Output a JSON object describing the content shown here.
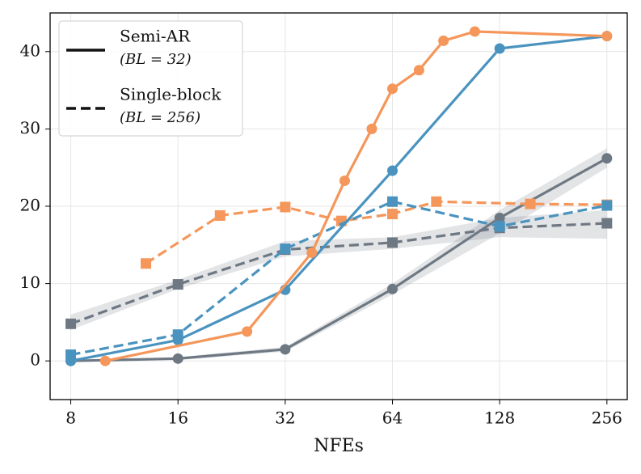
{
  "chart_data": {
    "type": "line",
    "x_label": "NFEs",
    "log_x": true,
    "grid": true,
    "xlim": [
      7,
      292
    ],
    "ylim": [
      -5,
      45
    ],
    "xticks": [
      8,
      16,
      32,
      64,
      128,
      256
    ],
    "yticks": [
      0,
      10,
      20,
      30,
      40
    ],
    "legend_position": "upper left",
    "legend": [
      {
        "label": "Semi-AR",
        "sublabel": "(BL = 32)",
        "style": "solid"
      },
      {
        "label": "Single-block",
        "sublabel": "(BL = 256)",
        "style": "dashed"
      }
    ],
    "series": [
      {
        "color": "#6e7883",
        "style": "dashed",
        "marker": "square",
        "x": [
          8,
          16,
          32,
          64,
          128,
          256
        ],
        "values": [
          4.8,
          9.9,
          14.4,
          15.3,
          17.2,
          17.8
        ],
        "lower": [
          4.0,
          9.3,
          13.5,
          14.5,
          16.0,
          15.8
        ],
        "upper": [
          6.0,
          10.5,
          15.5,
          16.0,
          18.5,
          19.5
        ]
      },
      {
        "color": "#6e7883",
        "style": "solid",
        "marker": "circle",
        "x": [
          8,
          16,
          32,
          64,
          128,
          256
        ],
        "values": [
          0,
          0.3,
          1.5,
          9.3,
          18.5,
          26.2
        ],
        "lower": [
          0,
          0.1,
          1.2,
          8.6,
          16.5,
          25.0
        ],
        "upper": [
          0,
          0.5,
          1.8,
          10.0,
          19.5,
          27.5
        ]
      },
      {
        "color": "#f5965a",
        "style": "dashed",
        "marker": "square",
        "x": [
          13,
          21,
          32,
          46,
          64,
          85,
          156,
          256
        ],
        "values": [
          12.6,
          18.8,
          19.9,
          18.1,
          19.0,
          20.6,
          20.3,
          20.2
        ]
      },
      {
        "color": "#4a93bf",
        "style": "dashed",
        "marker": "square",
        "x": [
          8,
          16,
          32,
          64,
          128,
          256
        ],
        "values": [
          0.8,
          3.4,
          14.5,
          20.6,
          17.4,
          20.1
        ]
      },
      {
        "color": "#4a93bf",
        "style": "solid",
        "marker": "circle",
        "x": [
          8,
          16,
          32,
          64,
          128,
          256
        ],
        "values": [
          0,
          2.7,
          9.2,
          24.6,
          40.4,
          42.0
        ]
      },
      {
        "color": "#f5965a",
        "style": "solid",
        "marker": "circle",
        "x": [
          10,
          25,
          38,
          47,
          56,
          64,
          76,
          89,
          109,
          256
        ],
        "values": [
          0,
          3.8,
          14.0,
          23.3,
          30.0,
          35.2,
          37.6,
          41.4,
          42.6,
          42.0
        ]
      }
    ]
  }
}
